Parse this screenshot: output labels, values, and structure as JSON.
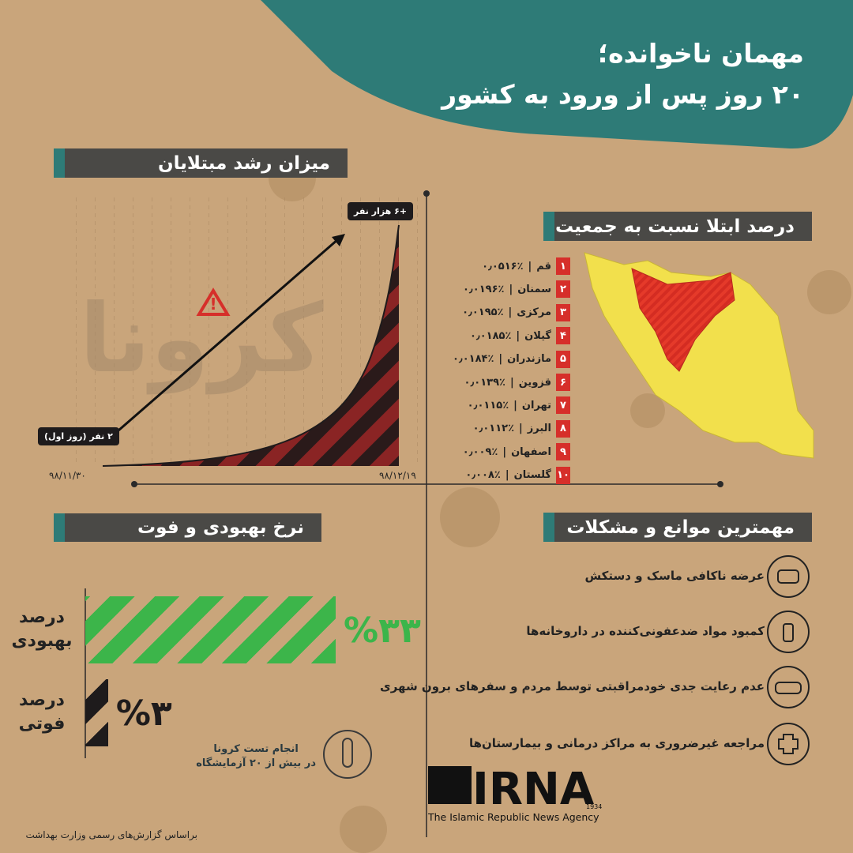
{
  "header": {
    "title_line1": "مهمان ناخوانده؛",
    "title_line2": "۲۰ روز پس از ورود به کشور"
  },
  "growth": {
    "title": "میزان رشد مبتلایان",
    "start_label": "۲ نفر (روز اول)",
    "end_label": "+۶ هزار نفر",
    "start_date": "۹۸/۱۱/۳۰",
    "end_date": "۹۸/۱۲/۱۹",
    "watermark": "کرونا"
  },
  "ratio": {
    "title": "درصد ابتلا نسبت به جمعیت",
    "rows": [
      {
        "rank": "۱",
        "province": "قم",
        "value": "۰٫۰۵۱۶٪"
      },
      {
        "rank": "۲",
        "province": "سمنان",
        "value": "۰٫۰۱۹۶٪"
      },
      {
        "rank": "۳",
        "province": "مرکزی",
        "value": "۰٫۰۱۹۵٪"
      },
      {
        "rank": "۴",
        "province": "گیلان",
        "value": "۰٫۰۱۸۵٪"
      },
      {
        "rank": "۵",
        "province": "مازندران",
        "value": "۰٫۰۱۸۴٪"
      },
      {
        "rank": "۶",
        "province": "قزوین",
        "value": "۰٫۰۱۳۹٪"
      },
      {
        "rank": "۷",
        "province": "تهران",
        "value": "۰٫۰۱۱۵٪"
      },
      {
        "rank": "۸",
        "province": "البرز",
        "value": "۰٫۰۱۱۲٪"
      },
      {
        "rank": "۹",
        "province": "اصفهان",
        "value": "۰٫۰۰۹٪"
      },
      {
        "rank": "۱۰",
        "province": "گلستان",
        "value": "۰٫۰۰۸٪"
      }
    ]
  },
  "rates": {
    "title": "نرخ بهبودی و فوت",
    "items": [
      {
        "label_line1": "درصد",
        "label_line2": "بهبودی",
        "value": 33,
        "value_label": "%۳۳",
        "color": "#3cb54a"
      },
      {
        "label_line1": "درصد",
        "label_line2": "فوتی",
        "value": 3,
        "value_label": "%۳",
        "color": "#1e1b1c"
      }
    ]
  },
  "tests": {
    "line1": "انجام تست کرونا",
    "line2": "در بیش از ۲۰ آزمایشگاه"
  },
  "obstacles": {
    "title": "مهمترین موانع و مشکلات",
    "items": [
      "عرضه ناکافی ماسک و دستکش",
      "کمبود مواد ضدعفونی‌کننده در داروخانه‌ها",
      "عدم رعایت جدی خودمراقبتی توسط مردم و سفرهای برون شهری",
      "مراجعه غیرضروری به مراکز درمانی و بیمارستان‌ها"
    ]
  },
  "logo": {
    "name": "IRNA",
    "year": "1934",
    "tagline": "The Islamic Republic News Agency"
  },
  "source": "براساس گزارش‌های رسمی وزارت بهداشت"
}
